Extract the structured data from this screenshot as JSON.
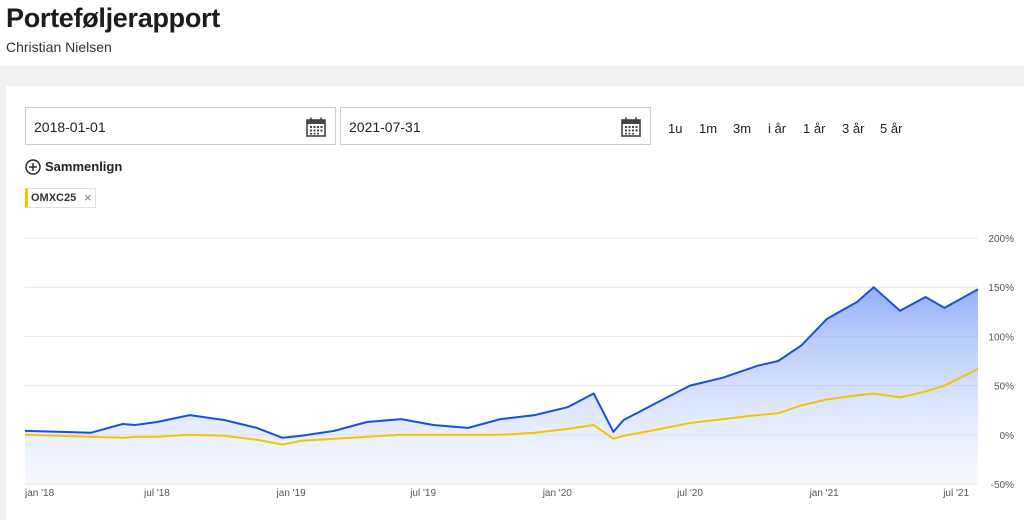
{
  "header": {
    "title": "Porteføljerapport",
    "subtitle": "Christian Nielsen"
  },
  "filters": {
    "start_date": "2018-01-01",
    "end_date": "2021-07-31",
    "periods": [
      "1u",
      "1m",
      "3m",
      "i år",
      "1 år",
      "3 år",
      "5 år"
    ],
    "compare_label": "Sammenlign",
    "compare_chips": [
      {
        "label": "OMXC25",
        "color": "#f2c500"
      }
    ]
  },
  "icons": [
    "calendar-icon",
    "plus-circle-icon",
    "close-icon"
  ],
  "chart_data": {
    "type": "area",
    "x_tick_labels": [
      "jan '18",
      "jul '18",
      "jan '19",
      "jul '19",
      "jan '20",
      "jul '20",
      "jan '21",
      "jul '21"
    ],
    "y_tick_labels": [
      "200%",
      "150%",
      "100%",
      "50%",
      "0%",
      "-50%"
    ],
    "ylim": [
      -50,
      200
    ],
    "y_axis_position": "right",
    "grid": true,
    "x": [
      "2018-01-01",
      "2018-02-15",
      "2018-04-01",
      "2018-05-15",
      "2018-06-01",
      "2018-07-01",
      "2018-08-15",
      "2018-10-01",
      "2018-11-15",
      "2018-12-20",
      "2019-01-15",
      "2019-03-01",
      "2019-04-15",
      "2019-06-01",
      "2019-07-15",
      "2019-09-01",
      "2019-10-15",
      "2019-12-01",
      "2020-01-15",
      "2020-02-20",
      "2020-03-18",
      "2020-04-01",
      "2020-05-15",
      "2020-07-01",
      "2020-08-15",
      "2020-10-01",
      "2020-10-30",
      "2020-12-01",
      "2021-01-05",
      "2021-02-15",
      "2021-03-10",
      "2021-04-15",
      "2021-05-20",
      "2021-06-15",
      "2021-07-31"
    ],
    "series": [
      {
        "color": "#1a4fe0",
        "fill": "gradient",
        "values": [
          4,
          3,
          2,
          11,
          10,
          13,
          20,
          15,
          7,
          -3,
          -1,
          4,
          13,
          16,
          10,
          7,
          16,
          20,
          28,
          42,
          3,
          15,
          32,
          50,
          58,
          70,
          75,
          91,
          118,
          135,
          150,
          126,
          140,
          129,
          148
        ]
      },
      {
        "color": "#f2c500",
        "fill": "none",
        "values": [
          0,
          -1,
          -2,
          -3,
          -2,
          -2,
          0,
          -1,
          -5,
          -10,
          -6,
          -4,
          -2,
          0,
          0,
          0,
          0,
          2,
          6,
          10,
          -4,
          -1,
          5,
          12,
          16,
          20,
          22,
          30,
          36,
          40,
          42,
          38,
          44,
          50,
          67
        ]
      }
    ]
  }
}
